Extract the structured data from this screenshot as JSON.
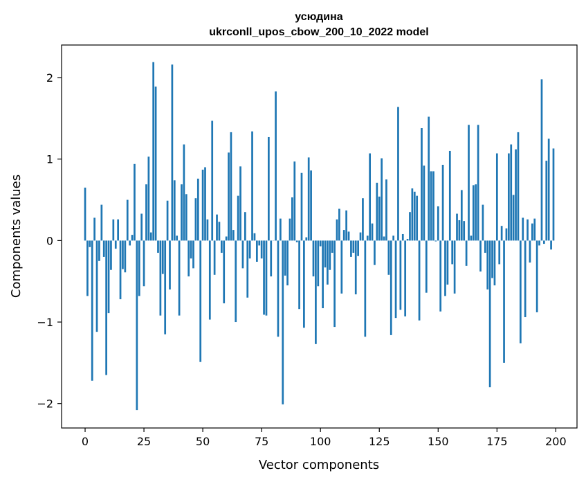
{
  "chart_data": {
    "type": "bar",
    "title": [
      "усюдина",
      "ukrconll_upos_cbow_200_10_2022 model"
    ],
    "xlabel": "Vector components",
    "ylabel": "Components values",
    "xlim": [
      -10,
      209
    ],
    "ylim": [
      -2.3,
      2.4
    ],
    "xticks": [
      0,
      25,
      50,
      75,
      100,
      125,
      150,
      175,
      200
    ],
    "yticks": [
      -2,
      -1,
      0,
      1,
      2
    ],
    "ytick_labels": [
      "−2",
      "−1",
      "0",
      "1",
      "2"
    ],
    "grid": false,
    "bar_color": "#1f77b4",
    "x": [
      0,
      1,
      2,
      3,
      4,
      5,
      6,
      7,
      8,
      9,
      10,
      11,
      12,
      13,
      14,
      15,
      16,
      17,
      18,
      19,
      20,
      21,
      22,
      23,
      24,
      25,
      26,
      27,
      28,
      29,
      30,
      31,
      32,
      33,
      34,
      35,
      36,
      37,
      38,
      39,
      40,
      41,
      42,
      43,
      44,
      45,
      46,
      47,
      48,
      49,
      50,
      51,
      52,
      53,
      54,
      55,
      56,
      57,
      58,
      59,
      60,
      61,
      62,
      63,
      64,
      65,
      66,
      67,
      68,
      69,
      70,
      71,
      72,
      73,
      74,
      75,
      76,
      77,
      78,
      79,
      80,
      81,
      82,
      83,
      84,
      85,
      86,
      87,
      88,
      89,
      90,
      91,
      92,
      93,
      94,
      95,
      96,
      97,
      98,
      99,
      100,
      101,
      102,
      103,
      104,
      105,
      106,
      107,
      108,
      109,
      110,
      111,
      112,
      113,
      114,
      115,
      116,
      117,
      118,
      119,
      120,
      121,
      122,
      123,
      124,
      125,
      126,
      127,
      128,
      129,
      130,
      131,
      132,
      133,
      134,
      135,
      136,
      137,
      138,
      139,
      140,
      141,
      142,
      143,
      144,
      145,
      146,
      147,
      148,
      149,
      150,
      151,
      152,
      153,
      154,
      155,
      156,
      157,
      158,
      159,
      160,
      161,
      162,
      163,
      164,
      165,
      166,
      167,
      168,
      169,
      170,
      171,
      172,
      173,
      174,
      175,
      176,
      177,
      178,
      179,
      180,
      181,
      182,
      183,
      184,
      185,
      186,
      187,
      188,
      189,
      190,
      191,
      192,
      193,
      194,
      195,
      196,
      197,
      198,
      199
    ],
    "values": [
      0.65,
      -0.68,
      -0.08,
      -1.72,
      0.28,
      -1.12,
      -0.25,
      0.44,
      -0.2,
      -1.65,
      -0.89,
      -0.36,
      0.26,
      -0.1,
      0.26,
      -0.72,
      -0.35,
      -0.39,
      0.5,
      -0.06,
      0.07,
      0.94,
      -2.08,
      -0.68,
      0.33,
      -0.56,
      0.69,
      1.03,
      0.1,
      2.19,
      1.89,
      -0.15,
      -0.92,
      -0.41,
      -1.15,
      0.49,
      -0.6,
      2.16,
      0.74,
      0.06,
      -0.92,
      0.69,
      1.18,
      0.57,
      -0.44,
      -0.22,
      -0.34,
      0.52,
      0.76,
      -1.49,
      0.87,
      0.9,
      0.26,
      -0.97,
      1.47,
      -0.42,
      0.32,
      0.23,
      -0.15,
      -0.77,
      0.05,
      1.08,
      1.33,
      0.13,
      -1.0,
      0.55,
      0.91,
      -0.34,
      0.35,
      -0.7,
      -0.22,
      1.34,
      0.09,
      -0.26,
      -0.06,
      -0.22,
      -0.91,
      -0.92,
      1.27,
      -0.44,
      0.0,
      1.83,
      -1.18,
      0.27,
      -2.01,
      -0.43,
      -0.55,
      0.27,
      0.53,
      0.97,
      -0.02,
      -0.84,
      0.83,
      -1.07,
      0.04,
      1.02,
      0.86,
      -0.44,
      -1.27,
      -0.56,
      -0.07,
      -0.83,
      -0.33,
      -0.54,
      -0.36,
      -0.15,
      -1.06,
      0.26,
      0.39,
      -0.65,
      0.13,
      0.37,
      0.11,
      -0.2,
      -0.15,
      -0.66,
      -0.19,
      0.1,
      0.52,
      -1.18,
      0.06,
      1.07,
      0.21,
      -0.3,
      0.71,
      0.54,
      1.01,
      0.05,
      0.75,
      -0.42,
      -1.16,
      0.06,
      -0.95,
      1.64,
      -0.85,
      0.08,
      -0.93,
      0.02,
      0.35,
      0.64,
      0.6,
      0.55,
      -0.98,
      1.38,
      0.92,
      -0.64,
      1.52,
      0.85,
      0.85,
      -0.01,
      0.42,
      -0.87,
      0.93,
      -0.68,
      -0.54,
      1.1,
      -0.29,
      -0.65,
      0.33,
      0.25,
      0.62,
      0.24,
      -0.31,
      1.42,
      0.06,
      0.68,
      0.69,
      1.42,
      -0.38,
      0.44,
      -0.15,
      -0.6,
      -1.8,
      -0.46,
      -0.55,
      1.07,
      -0.29,
      0.18,
      -1.5,
      0.15,
      1.07,
      1.18,
      0.56,
      1.12,
      1.33,
      -1.26,
      0.28,
      -0.94,
      0.26,
      -0.27,
      0.21,
      0.27,
      -0.88,
      -0.06,
      1.98,
      -0.04,
      0.98,
      1.25,
      -0.11,
      1.13
    ]
  }
}
